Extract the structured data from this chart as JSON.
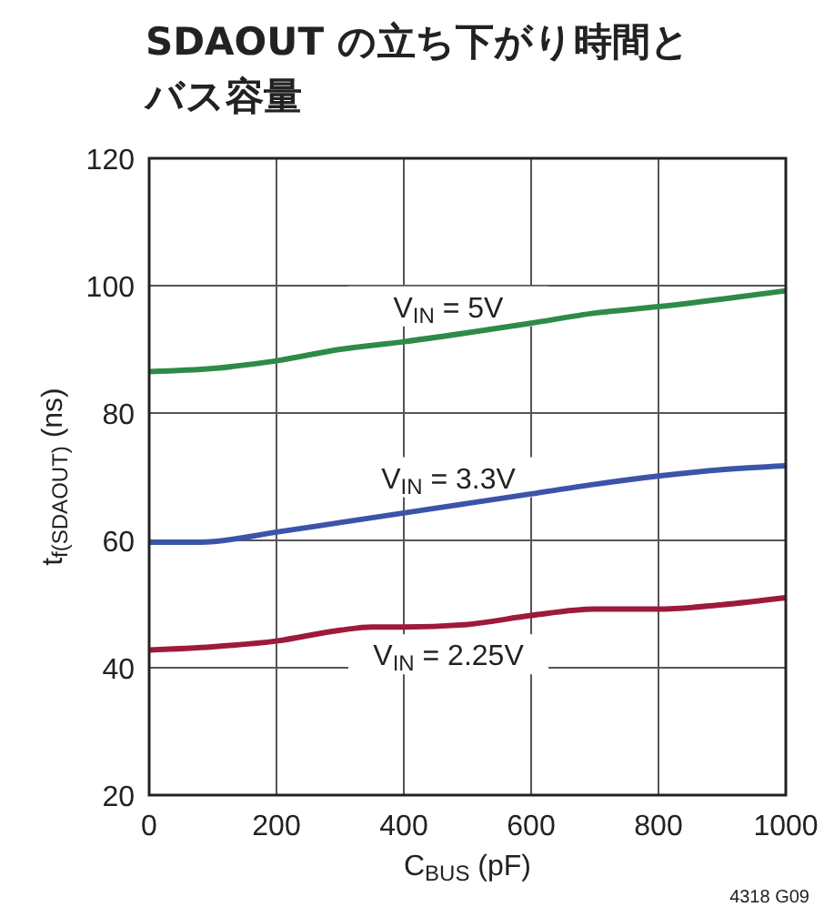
{
  "chart_data": {
    "type": "line",
    "title": "SDAOUT の立ち下がり時間とバス容量",
    "xlabel": "C$_{BUS}$ (pF)",
    "ylabel": "t$_{f(SDAOUT)}$ (ns)",
    "xlim": [
      0,
      1000
    ],
    "xticks": [
      0,
      200,
      400,
      600,
      800,
      1000
    ],
    "ylim": [
      20,
      120
    ],
    "yticks": [
      20,
      40,
      60,
      80,
      100,
      120
    ],
    "grid": true,
    "line_style": "solid",
    "marker": "none",
    "series": [
      {
        "name": "V$_{IN}$ = 5V",
        "color": "#2e8b47",
        "x": [
          0,
          100,
          200,
          300,
          400,
          500,
          600,
          700,
          800,
          900,
          1000
        ],
        "values": [
          86.5,
          87,
          88.2,
          90,
          91.2,
          92.6,
          94.1,
          95.7,
          96.7,
          97.9,
          99.2
        ]
      },
      {
        "name": "V$_{IN}$ = 3.3V",
        "color": "#3a55a8",
        "x": [
          0,
          80,
          200,
          300,
          400,
          500,
          600,
          700,
          800,
          900,
          1000
        ],
        "values": [
          59.7,
          59.7,
          61.3,
          62.8,
          64.3,
          65.8,
          67.3,
          68.8,
          70.1,
          71.1,
          71.7
        ]
      },
      {
        "name": "V$_{IN}$ = 2.25V",
        "color": "#9e1a3a",
        "x": [
          0,
          100,
          200,
          300,
          350,
          400,
          500,
          600,
          700,
          800,
          900,
          1000
        ],
        "values": [
          42.8,
          43.3,
          44.2,
          45.9,
          46.4,
          46.4,
          46.8,
          48.2,
          49.2,
          49.2,
          49.9,
          51
        ]
      }
    ],
    "annotations": [
      "4318 G09"
    ]
  }
}
